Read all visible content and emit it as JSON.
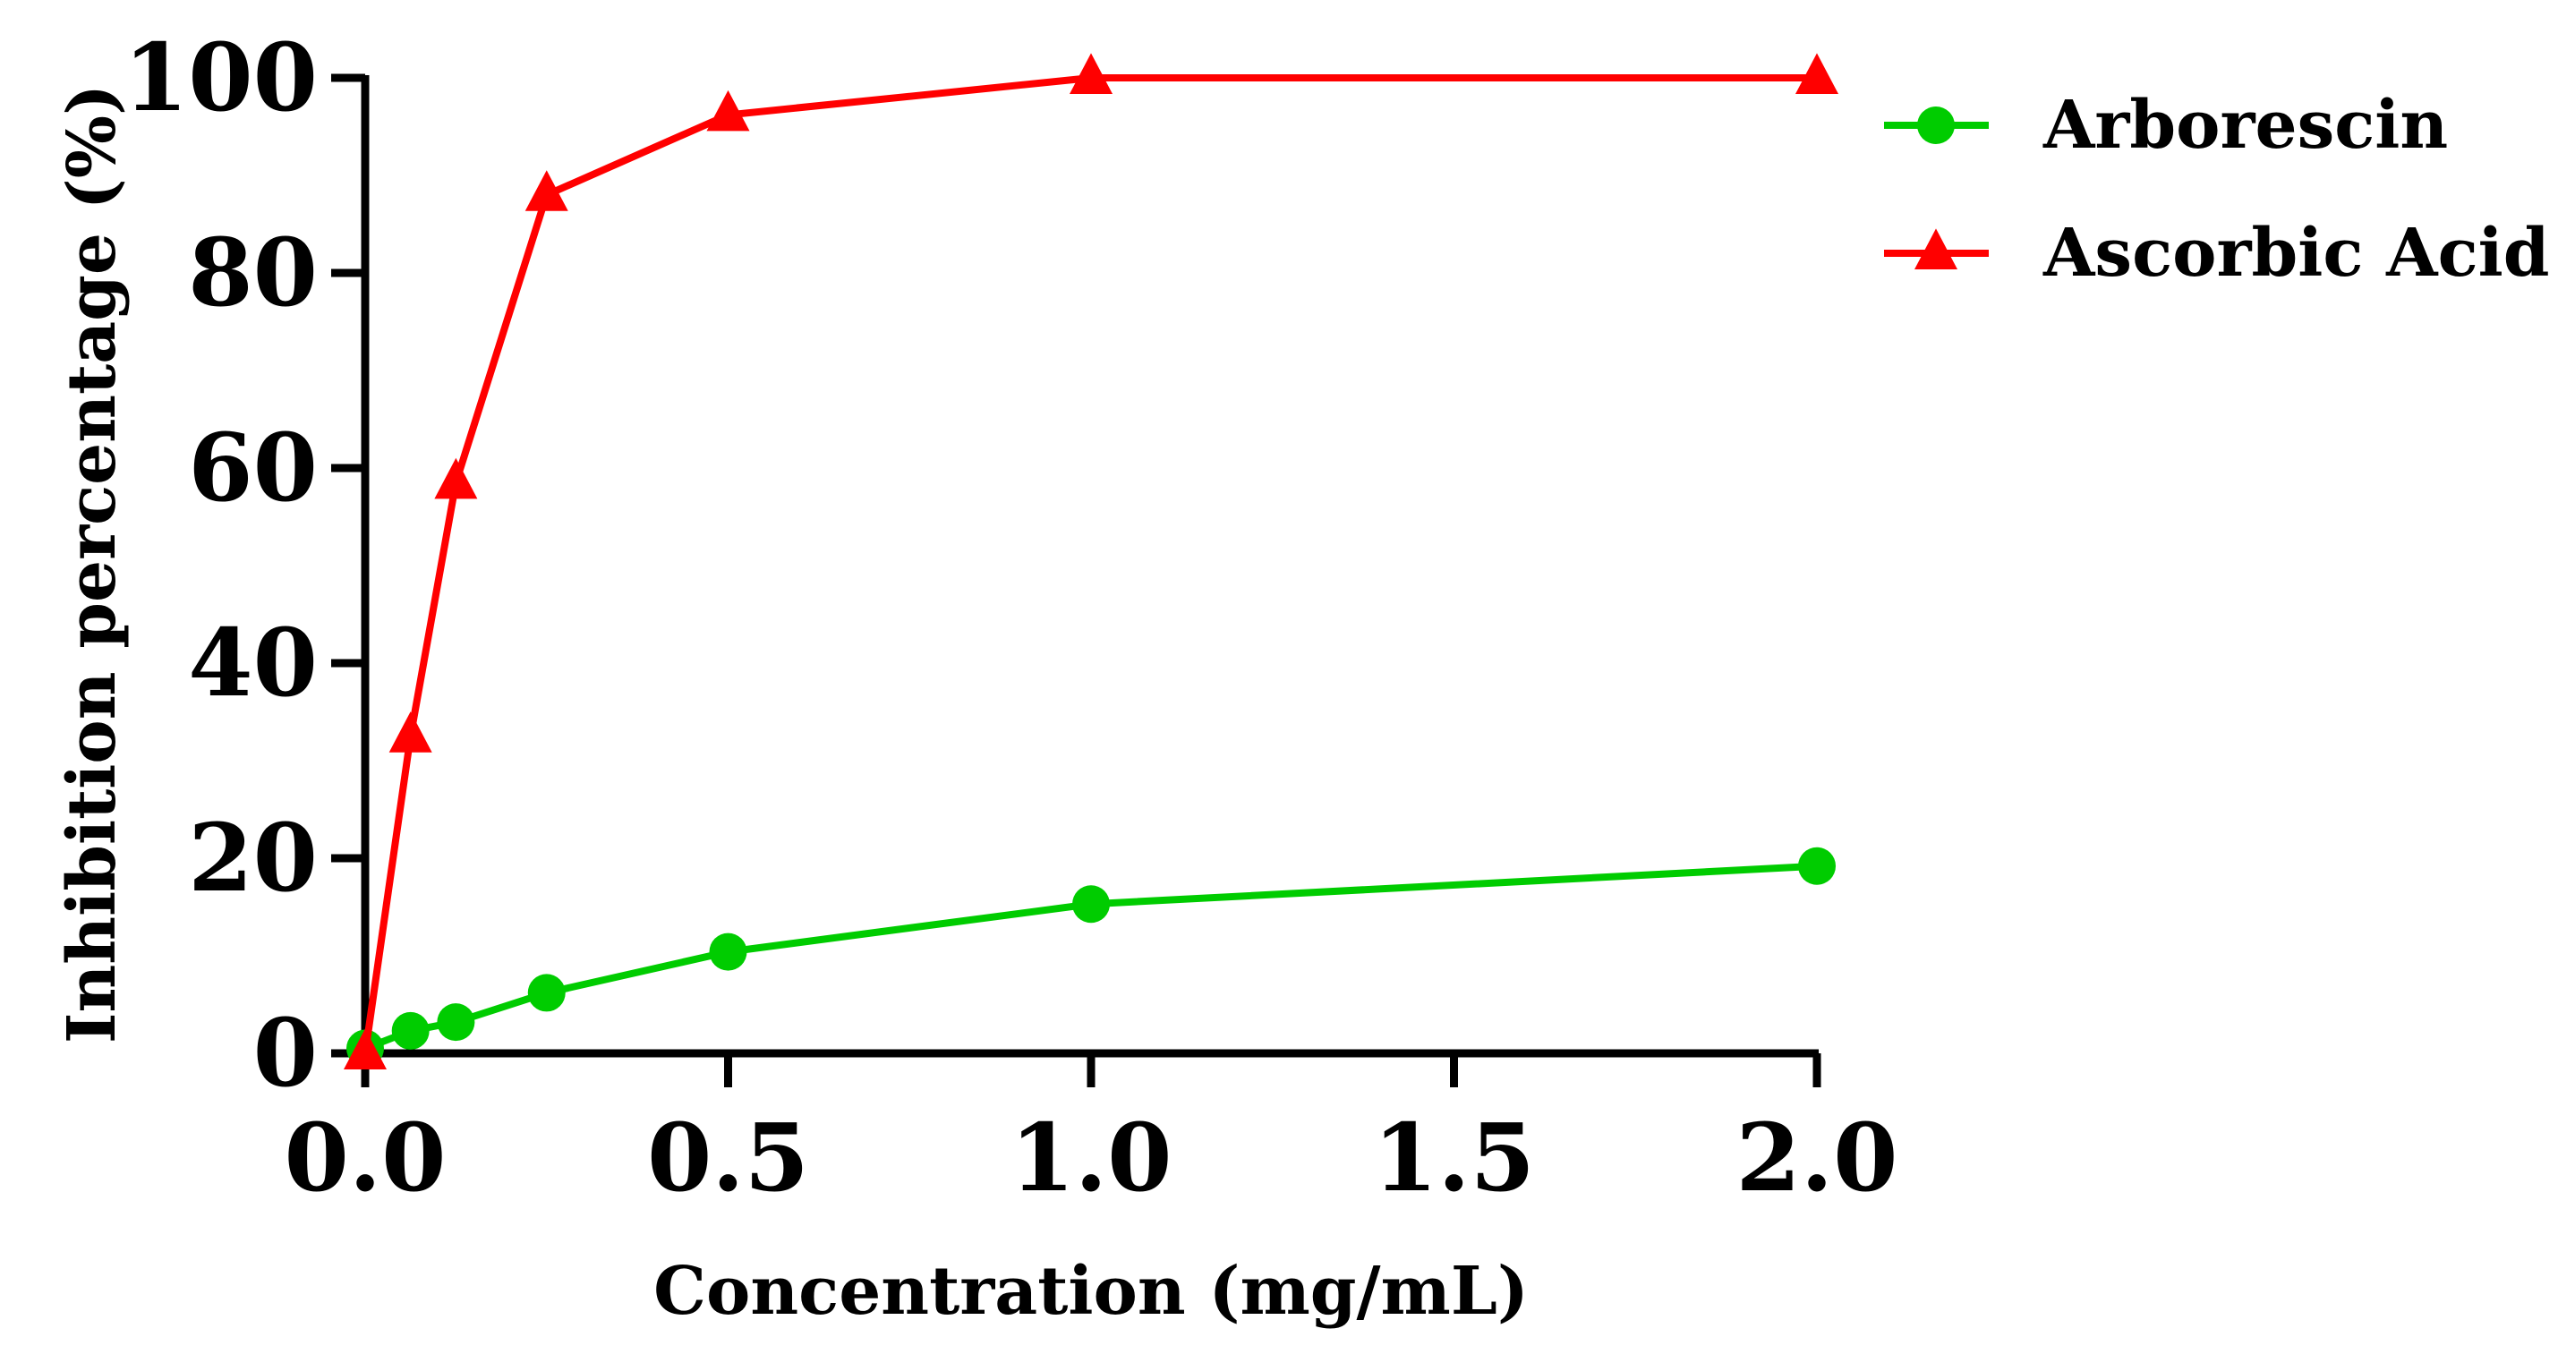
{
  "chart_data": {
    "type": "line",
    "title": "",
    "xlabel": "Concentration (mg/mL)",
    "ylabel": "Inhibition percentage (%)",
    "xlim": [
      0,
      2
    ],
    "ylim": [
      0,
      100
    ],
    "xticks": [
      "0.0",
      "0.5",
      "1.0",
      "1.5",
      "2.0"
    ],
    "yticks": [
      "0",
      "20",
      "40",
      "60",
      "80",
      "100"
    ],
    "xtick_values": [
      0,
      0.5,
      1.0,
      1.5,
      2.0
    ],
    "ytick_values": [
      0,
      20,
      40,
      60,
      80,
      100
    ],
    "grid": false,
    "legend_position": "top-right",
    "series": [
      {
        "name": "Arborescin",
        "color": "#00cc00",
        "marker": "circle",
        "x": [
          0,
          0.0625,
          0.125,
          0.25,
          0.5,
          1.0,
          2.0
        ],
        "y": [
          0.5,
          2.3,
          3.2,
          6.2,
          10.4,
          15.3,
          19.2
        ]
      },
      {
        "name": "Ascorbic Acid",
        "color": "#ff0000",
        "marker": "triangle",
        "x": [
          0,
          0.0625,
          0.125,
          0.25,
          0.5,
          1.0,
          2.0
        ],
        "y": [
          0,
          32.5,
          58.5,
          88.0,
          96.2,
          100,
          100
        ]
      }
    ]
  }
}
